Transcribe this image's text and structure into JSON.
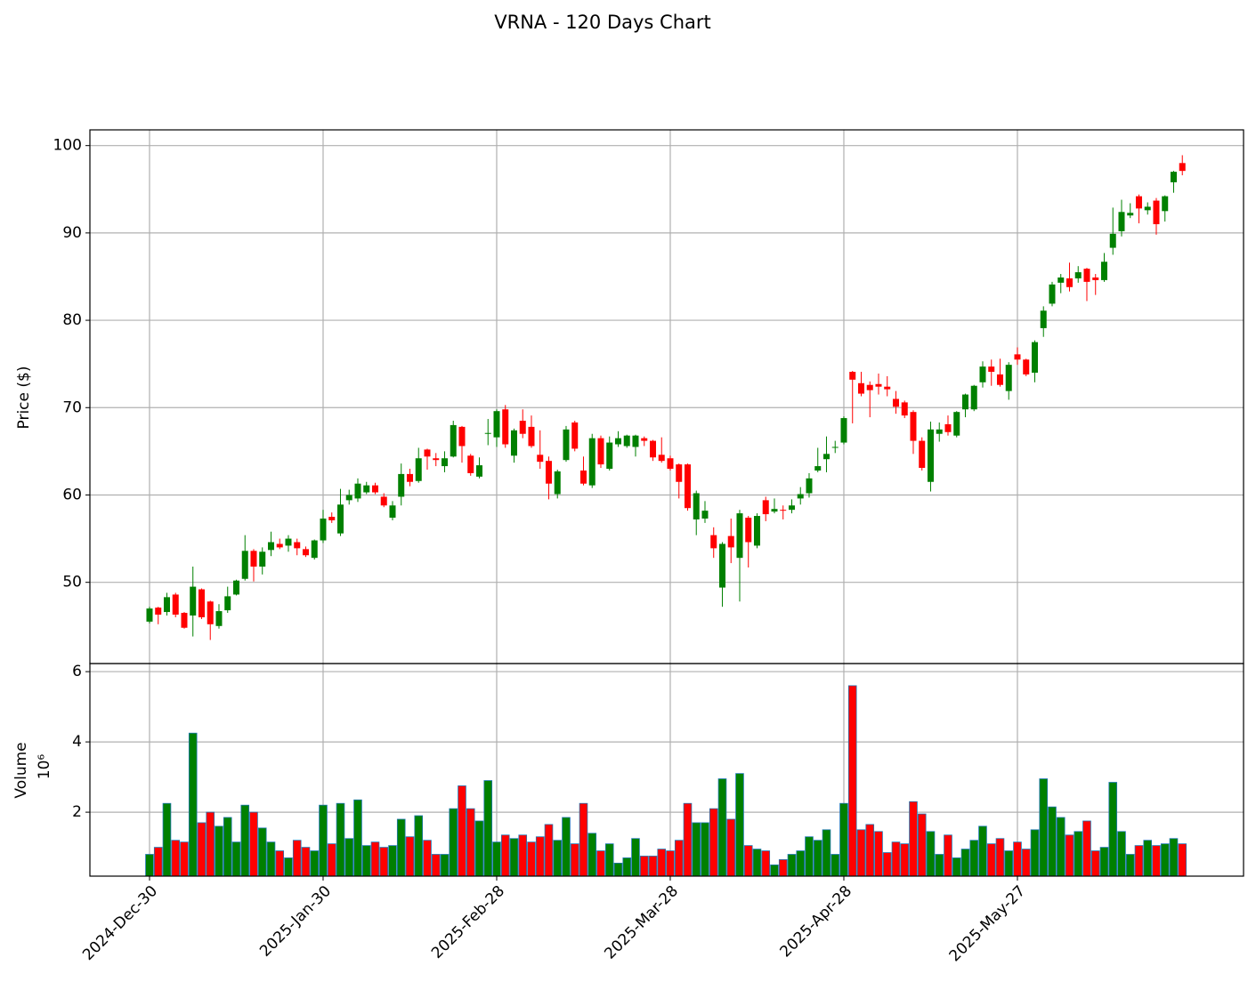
{
  "chart_data": {
    "type": "candlestick",
    "title": "VRNA - 120 Days Chart",
    "ylabel": "Price ($)",
    "volume_ylabel": "Volume",
    "volume_offset_label": "10⁶",
    "up_color": "#008000",
    "down_color": "#ff0000",
    "volume_edge_color": "#1f77b4",
    "grid": true,
    "categories": [
      "2024-Dec-30",
      null,
      null,
      null,
      null,
      null,
      null,
      null,
      null,
      null,
      null,
      null,
      null,
      null,
      null,
      null,
      null,
      null,
      null,
      null,
      "2025-Jan-30",
      null,
      null,
      null,
      null,
      null,
      null,
      null,
      null,
      null,
      null,
      null,
      null,
      null,
      null,
      null,
      null,
      null,
      null,
      null,
      "2025-Feb-28",
      null,
      null,
      null,
      null,
      null,
      null,
      null,
      null,
      null,
      null,
      null,
      null,
      null,
      null,
      null,
      null,
      null,
      null,
      null,
      "2025-Mar-28",
      null,
      null,
      null,
      null,
      null,
      null,
      null,
      null,
      null,
      null,
      null,
      null,
      null,
      null,
      null,
      null,
      null,
      null,
      null,
      "2025-Apr-28",
      null,
      null,
      null,
      null,
      null,
      null,
      null,
      null,
      null,
      null,
      null,
      null,
      null,
      null,
      null,
      null,
      null,
      null,
      null,
      "2025-May-27",
      null,
      null,
      null,
      null,
      null,
      null,
      null,
      null,
      null,
      null,
      null,
      null,
      null,
      null,
      null,
      null,
      null,
      null,
      null
    ],
    "open": [
      45.5,
      47.1,
      46.6,
      48.6,
      46.5,
      46.2,
      49.2,
      47.8,
      45,
      46.8,
      48.6,
      50.4,
      53.6,
      51.8,
      53.7,
      54.4,
      54.2,
      54.6,
      53.8,
      52.8,
      54.8,
      57.5,
      55.6,
      59.4,
      59.6,
      60.3,
      61.1,
      59.8,
      57.4,
      59.8,
      62.4,
      61.6,
      65.2,
      64.2,
      63.3,
      64.4,
      67.8,
      64.5,
      62.1,
      67,
      66.6,
      69.8,
      64.5,
      68.5,
      67.8,
      64.6,
      63.9,
      60.1,
      64,
      68.3,
      62.8,
      61.1,
      66.5,
      63,
      65.8,
      65.6,
      65.5,
      66.5,
      66.2,
      64.6,
      64.2,
      63.5,
      63.5,
      57.2,
      57.3,
      55.4,
      49.4,
      55.3,
      52.8,
      57.4,
      54.2,
      59.4,
      58.1,
      58.3,
      58.3,
      59.6,
      60.2,
      62.8,
      64.1,
      65.4,
      66,
      74.1,
      72.8,
      72.6,
      72.7,
      72.4,
      71,
      70.6,
      69.5,
      66.2,
      61.5,
      67,
      68.1,
      66.8,
      69.8,
      69.8,
      72.9,
      74.7,
      73.8,
      71.9,
      76.1,
      75.5,
      74,
      79.1,
      81.9,
      84.3,
      84.8,
      84.8,
      85.9,
      84.9,
      84.6,
      88.3,
      90.2,
      92,
      94.2,
      92.6,
      93.7,
      92.5,
      95.8,
      98
    ],
    "high": [
      47.2,
      47.2,
      48.8,
      48.8,
      46.6,
      51.8,
      49.3,
      47.9,
      47.5,
      49.5,
      50.3,
      55.4,
      53.8,
      54,
      55.8,
      55,
      55.4,
      55,
      54.1,
      54.9,
      58.3,
      58,
      60.7,
      60.6,
      61.9,
      61.5,
      61.4,
      60.2,
      59.3,
      63.6,
      63,
      65.4,
      65.3,
      64.8,
      65,
      68.5,
      67.9,
      64.7,
      64.3,
      68.7,
      69.8,
      70.3,
      67.6,
      69.8,
      69.1,
      67.4,
      64.4,
      62.9,
      67.9,
      68.5,
      64.4,
      67,
      66.8,
      66.7,
      67.3,
      66.9,
      66.9,
      66.7,
      66.3,
      66.6,
      64.5,
      63.6,
      63.6,
      60.5,
      59.3,
      56.3,
      54.6,
      57.3,
      58.3,
      57.6,
      57.9,
      59.8,
      59.6,
      58.8,
      59.5,
      60.9,
      62.5,
      65.4,
      66.7,
      66.2,
      69,
      74.2,
      74.1,
      73,
      73.9,
      73.6,
      71.9,
      70.8,
      69.7,
      66.6,
      68.4,
      68.3,
      69.1,
      69.6,
      71.6,
      72.6,
      75.3,
      75.5,
      75.6,
      75.2,
      76.9,
      75.6,
      77.7,
      81.6,
      84.4,
      85.3,
      86.6,
      86.2,
      86,
      85.3,
      87.7,
      92.9,
      93.8,
      93.4,
      94.4,
      93.5,
      94,
      94.3,
      97.1,
      98.9
    ],
    "low": [
      45.3,
      45.2,
      46.2,
      46,
      44.7,
      43.8,
      45.8,
      43.4,
      44.7,
      46.5,
      48.5,
      50.2,
      50.1,
      50.9,
      53,
      53.8,
      53.5,
      53.1,
      52.9,
      52.6,
      54.5,
      56.8,
      55.3,
      58.9,
      59.2,
      60.1,
      60.1,
      58.6,
      57.1,
      58.8,
      61,
      61.4,
      62.9,
      63.3,
      62.6,
      64.3,
      63.7,
      62.2,
      61.9,
      65.7,
      65.5,
      65.4,
      63.7,
      66.5,
      65.4,
      63,
      59.5,
      59.6,
      63.8,
      65,
      61.1,
      60.8,
      63.1,
      62.8,
      65.5,
      65.4,
      64.4,
      65.6,
      63.9,
      63.7,
      62.8,
      59.6,
      58.2,
      55.4,
      56.8,
      52.8,
      47.2,
      52.2,
      47.8,
      51.7,
      53.9,
      57,
      57.9,
      57.2,
      57.9,
      58.9,
      59.7,
      62.6,
      62.6,
      64.8,
      65.8,
      68.2,
      71.3,
      68.9,
      71.5,
      71.3,
      69.3,
      68.8,
      64.7,
      62.8,
      60.4,
      66.1,
      66.8,
      66.6,
      68.9,
      69.6,
      72.3,
      72.5,
      72.4,
      70.9,
      74.9,
      73.6,
      72.9,
      78.1,
      81.6,
      83.1,
      83.3,
      84.3,
      82.2,
      82.9,
      84.4,
      87.5,
      89.6,
      91.7,
      91.1,
      92.1,
      89.8,
      91.3,
      94.6,
      96.6
    ],
    "close": [
      47,
      46.3,
      48.3,
      46.3,
      44.8,
      49.5,
      46,
      45.2,
      46.7,
      48.4,
      50.2,
      53.6,
      51.8,
      53.5,
      54.6,
      54,
      55,
      53.9,
      53.1,
      54.8,
      57.3,
      57.1,
      58.9,
      60,
      61.3,
      61.1,
      60.3,
      58.8,
      58.8,
      62.4,
      61.5,
      64.2,
      64.4,
      64,
      64.2,
      68,
      65.6,
      62.5,
      63.4,
      67.1,
      69.6,
      65.8,
      67.4,
      67,
      65.6,
      63.8,
      61.3,
      62.7,
      67.5,
      65.3,
      61.3,
      66.5,
      63.5,
      66,
      66.5,
      66.8,
      66.8,
      66.2,
      64.3,
      63.9,
      63,
      61.5,
      58.5,
      60.2,
      58.2,
      53.9,
      54.4,
      54,
      57.9,
      54.6,
      57.6,
      57.8,
      58.4,
      58.2,
      58.8,
      60.1,
      61.9,
      63.3,
      64.7,
      65.5,
      68.8,
      73.2,
      71.6,
      72,
      72.4,
      72.1,
      70.1,
      69.1,
      66.2,
      63.1,
      67.5,
      67.5,
      67.2,
      69.5,
      71.5,
      72.5,
      74.7,
      74.1,
      72.6,
      74.9,
      75.5,
      73.8,
      77.5,
      81.1,
      84.1,
      84.9,
      83.8,
      85.5,
      84.4,
      84.6,
      86.7,
      89.9,
      92.4,
      92.3,
      92.8,
      93,
      91,
      94.2,
      97,
      97.1
    ],
    "volume": [
      0.8,
      1,
      2.25,
      1.2,
      1.15,
      4.25,
      1.7,
      2,
      1.6,
      1.85,
      1.15,
      2.2,
      2,
      1.55,
      1.15,
      0.9,
      0.7,
      1.2,
      1,
      0.9,
      2.2,
      1.1,
      2.25,
      1.25,
      2.35,
      1.05,
      1.15,
      1,
      1.05,
      1.8,
      1.3,
      1.9,
      1.2,
      0.8,
      0.8,
      2.1,
      2.75,
      2.1,
      1.75,
      2.9,
      1.15,
      1.35,
      1.25,
      1.35,
      1.15,
      1.3,
      1.65,
      1.2,
      1.85,
      1.1,
      2.25,
      1.4,
      0.9,
      1.1,
      0.55,
      0.7,
      1.25,
      0.75,
      0.75,
      0.95,
      0.9,
      1.2,
      2.25,
      1.7,
      1.7,
      2.1,
      2.95,
      1.8,
      3.1,
      1.05,
      0.95,
      0.9,
      0.5,
      0.65,
      0.8,
      0.9,
      1.3,
      1.2,
      1.5,
      0.8,
      2.25,
      5.6,
      1.5,
      1.65,
      1.45,
      0.85,
      1.15,
      1.1,
      2.3,
      1.95,
      1.45,
      0.8,
      1.35,
      0.7,
      0.95,
      1.2,
      1.6,
      1.1,
      1.25,
      0.9,
      1.15,
      0.95,
      1.5,
      2.95,
      2.15,
      1.85,
      1.35,
      1.45,
      1.75,
      0.9,
      1,
      2.85,
      1.45,
      0.8,
      1.05,
      1.2,
      1.05,
      1.1,
      1.25,
      1.1
    ],
    "ylim": [
      40.7,
      101.8
    ],
    "yticks": [
      50,
      60,
      70,
      80,
      90,
      100
    ],
    "volume_ylim": [
      0.18,
      6.23
    ],
    "volume_yticks": [
      2,
      4,
      6
    ]
  }
}
